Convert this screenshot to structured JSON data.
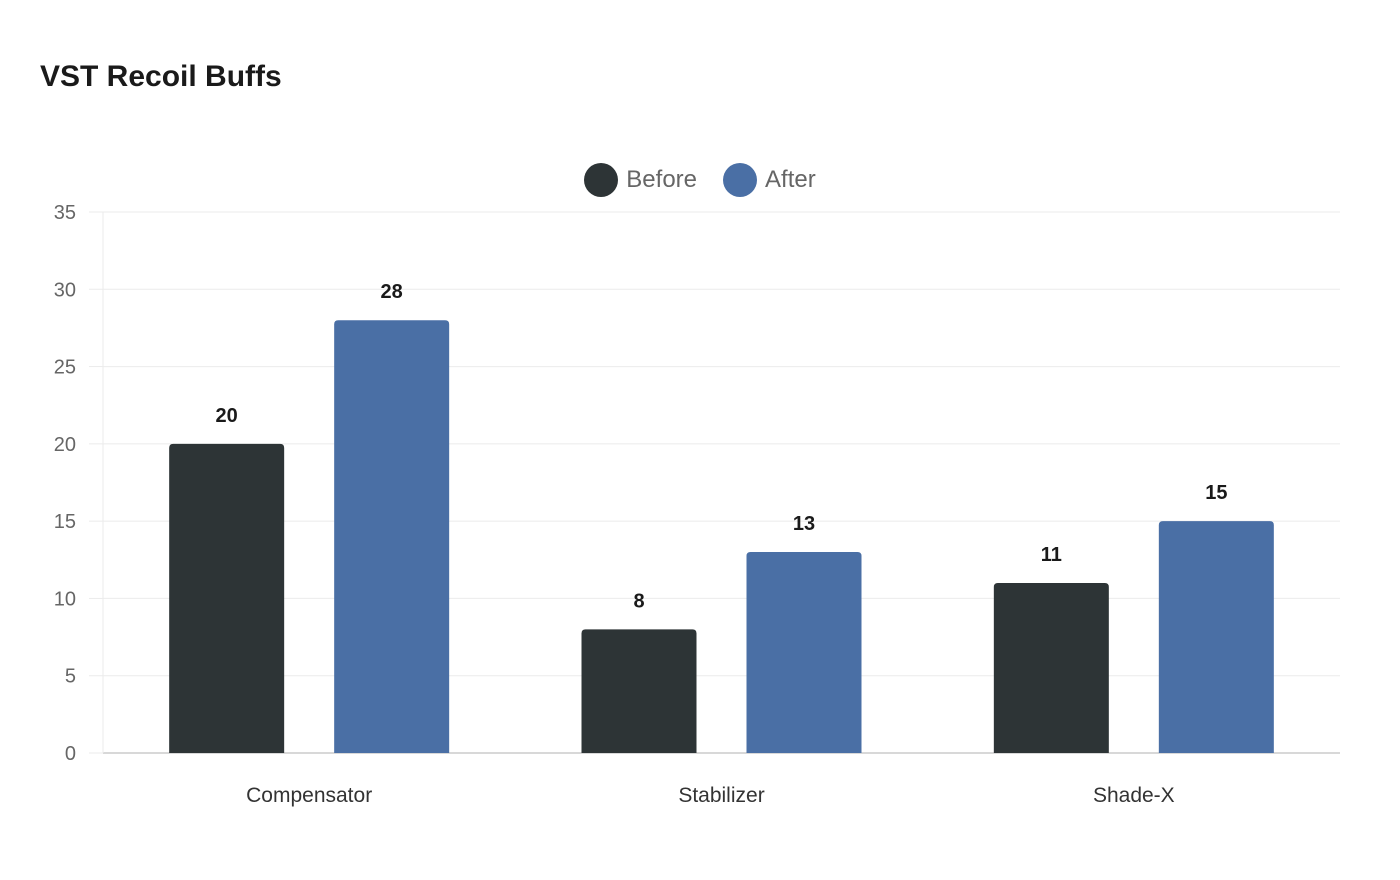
{
  "chart_data": {
    "type": "bar",
    "title": "VST Recoil Buffs",
    "categories": [
      "Compensator",
      "Stabilizer",
      "Shade-X"
    ],
    "series": [
      {
        "name": "Before",
        "values": [
          20,
          8,
          11
        ],
        "color": "#2d3436"
      },
      {
        "name": "After",
        "values": [
          28,
          13,
          15
        ],
        "color": "#4a6fa5"
      }
    ],
    "ylim": [
      0,
      35
    ],
    "yticks": [
      0,
      5,
      10,
      15,
      20,
      25,
      30,
      35
    ],
    "xlabel": "",
    "ylabel": "",
    "grid": true,
    "legend": "top-center",
    "data_labels": true
  }
}
